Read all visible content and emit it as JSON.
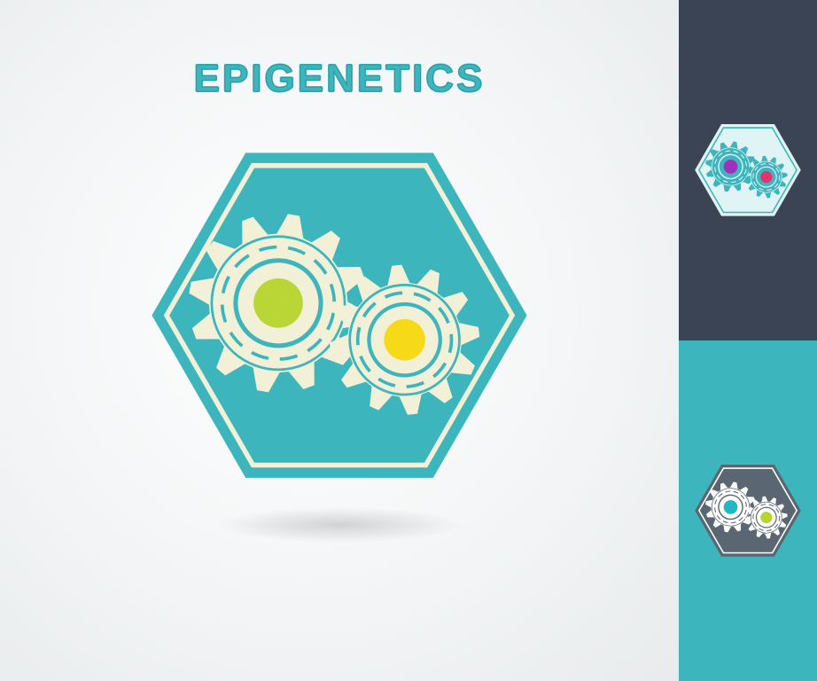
{
  "title": "EPIGENETICS",
  "main": {
    "hex_fill": "#3db5bd",
    "hex_border": "#f2f0d7",
    "gear_color": "#f2f0d7",
    "gear_left_center": "#b9d636",
    "gear_right_center": "#f6d917",
    "dash_color": "#3db5bd",
    "title_color": "#3eb5bd"
  },
  "variants": [
    {
      "panel_bg": "#3a4454",
      "hex_fill": "#e1f4f5",
      "hex_border": "#3eb5bd",
      "gear_color": "#3eb5bd",
      "gear_left_center": "#a22fbc",
      "gear_right_center": "#e4316f",
      "dash_color": "#e1f4f5"
    },
    {
      "panel_bg": "#3db5bd",
      "hex_fill": "#5a6672",
      "hex_border": "#ffffff",
      "gear_color": "#ffffff",
      "gear_left_center": "#1fb8c4",
      "gear_right_center": "#b6d52f",
      "dash_color": "#5a6672"
    }
  ],
  "layout": {
    "total_width": 922,
    "total_height": 768,
    "main_width": 766,
    "side_width": 156,
    "main_hex_size": 460,
    "variant_hex_size": 130
  }
}
